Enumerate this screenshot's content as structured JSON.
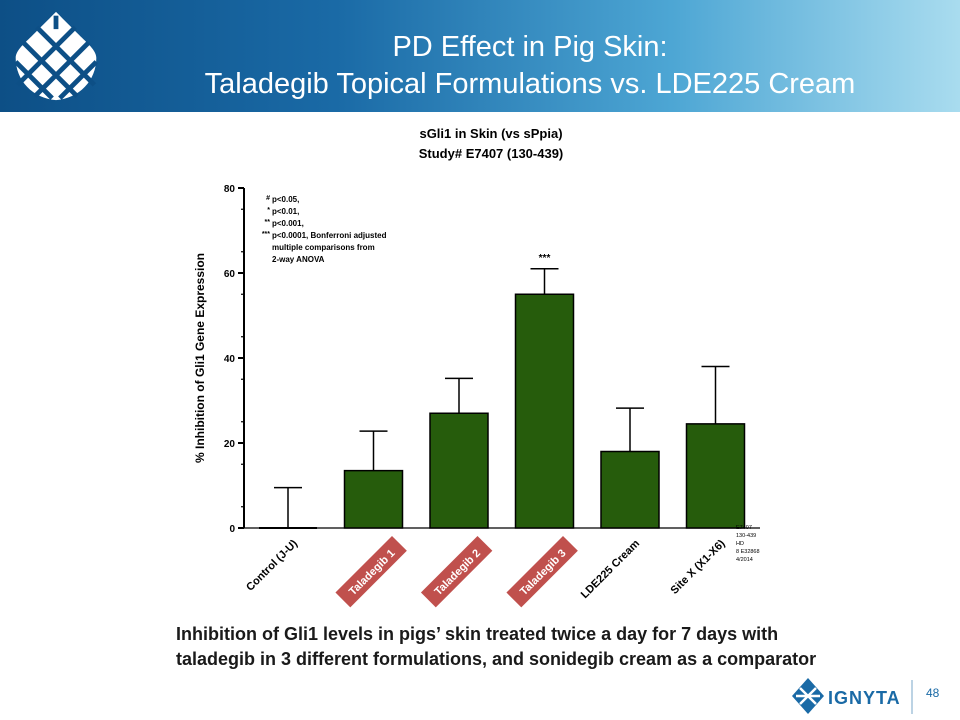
{
  "slide": {
    "title_line1": "PD Effect in Pig Skin:",
    "title_line2": "Taladegib Topical Formulations vs. LDE225 Cream",
    "caption_line1": "Inhibition of Gli1 levels in pigs’ skin treated twice a day for 7 days with",
    "caption_line2": "taladegib in 3 different formulations, and sonidegib cream as a comparator",
    "page_number": "48",
    "brand_name": "IGNYTA",
    "colors": {
      "header_dark": "#0d4f86",
      "header_light": "#a9dcef",
      "bar": "#265c0c",
      "callout": "#c0504d"
    }
  },
  "chart_data": {
    "type": "bar",
    "title": "sGli1 in Skin (vs sPpia)",
    "subtitle": "Study# E7407  (130-439)",
    "xlabel": "",
    "ylabel": "% Inhibition of Gli1 Gene Expression",
    "ylim": [
      0,
      80
    ],
    "yticks": [
      0,
      20,
      40,
      60,
      80
    ],
    "grid": false,
    "categories": [
      "Control (J-U)",
      "Taladegib 1",
      "Taladegib 2",
      "Taladegib 3",
      "LDE225 Cream",
      "Site X (X1-X6)"
    ],
    "values": [
      0,
      13.5,
      27,
      55,
      18,
      24.5
    ],
    "error_upper": [
      9.5,
      22.8,
      35.2,
      61,
      28.2,
      38
    ],
    "highlighted_categories": [
      "Taladegib 1",
      "Taladegib 2",
      "Taladegib 3"
    ],
    "annotations": [
      {
        "category": "Taladegib 3",
        "text": "***"
      }
    ],
    "legend_notes": [
      {
        "symbol": "#",
        "text": "p<0.05,"
      },
      {
        "symbol": "*",
        "text": "p<0.01,"
      },
      {
        "symbol": "**",
        "text": "p<0.001,"
      },
      {
        "symbol": "***",
        "text": "p<0.0001, Bonferroni adjusted"
      },
      {
        "symbol": "",
        "text": "multiple comparisons from"
      },
      {
        "symbol": "",
        "text": "2-way ANOVA"
      }
    ],
    "side_note": [
      "E7407",
      "130-439",
      "HD",
      "8 E32868",
      "4/2014"
    ]
  }
}
